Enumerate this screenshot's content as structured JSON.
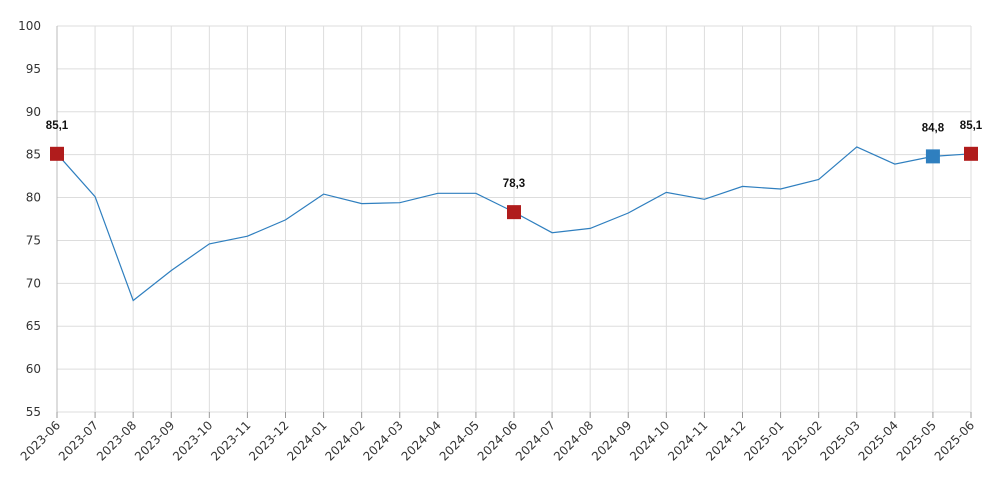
{
  "chart_data": {
    "type": "line",
    "x": [
      "2023-06",
      "2023-07",
      "2023-08",
      "2023-09",
      "2023-10",
      "2023-11",
      "2023-12",
      "2024-01",
      "2024-02",
      "2024-03",
      "2024-04",
      "2024-05",
      "2024-06",
      "2024-07",
      "2024-08",
      "2024-09",
      "2024-10",
      "2024-11",
      "2024-12",
      "2025-01",
      "2025-02",
      "2025-03",
      "2025-04",
      "2025-05",
      "2025-06"
    ],
    "series": [
      {
        "values": [
          85.1,
          80.1,
          68.0,
          71.5,
          74.6,
          75.5,
          77.4,
          80.4,
          79.3,
          79.4,
          80.5,
          80.5,
          78.3,
          75.9,
          76.4,
          78.2,
          80.6,
          79.8,
          81.3,
          81.0,
          82.1,
          85.9,
          83.9,
          84.8,
          85.1
        ]
      }
    ],
    "ylim": [
      55,
      100
    ],
    "yticks": [
      55,
      60,
      65,
      70,
      75,
      80,
      85,
      90,
      95,
      100
    ],
    "grid": true,
    "title": "",
    "xlabel": "",
    "ylabel": "",
    "colors": {
      "line": "#2f7fbf",
      "highlight_red": "#b01c1c",
      "highlight_blue": "#2f7fbf",
      "grid": "#dddddd"
    },
    "highlights": [
      {
        "index": 0,
        "label": "85,1",
        "color": "#b01c1c"
      },
      {
        "index": 12,
        "label": "78,3",
        "color": "#b01c1c"
      },
      {
        "index": 23,
        "label": "84,8",
        "color": "#2f7fbf"
      },
      {
        "index": 24,
        "label": "85,1",
        "color": "#b01c1c"
      }
    ]
  }
}
